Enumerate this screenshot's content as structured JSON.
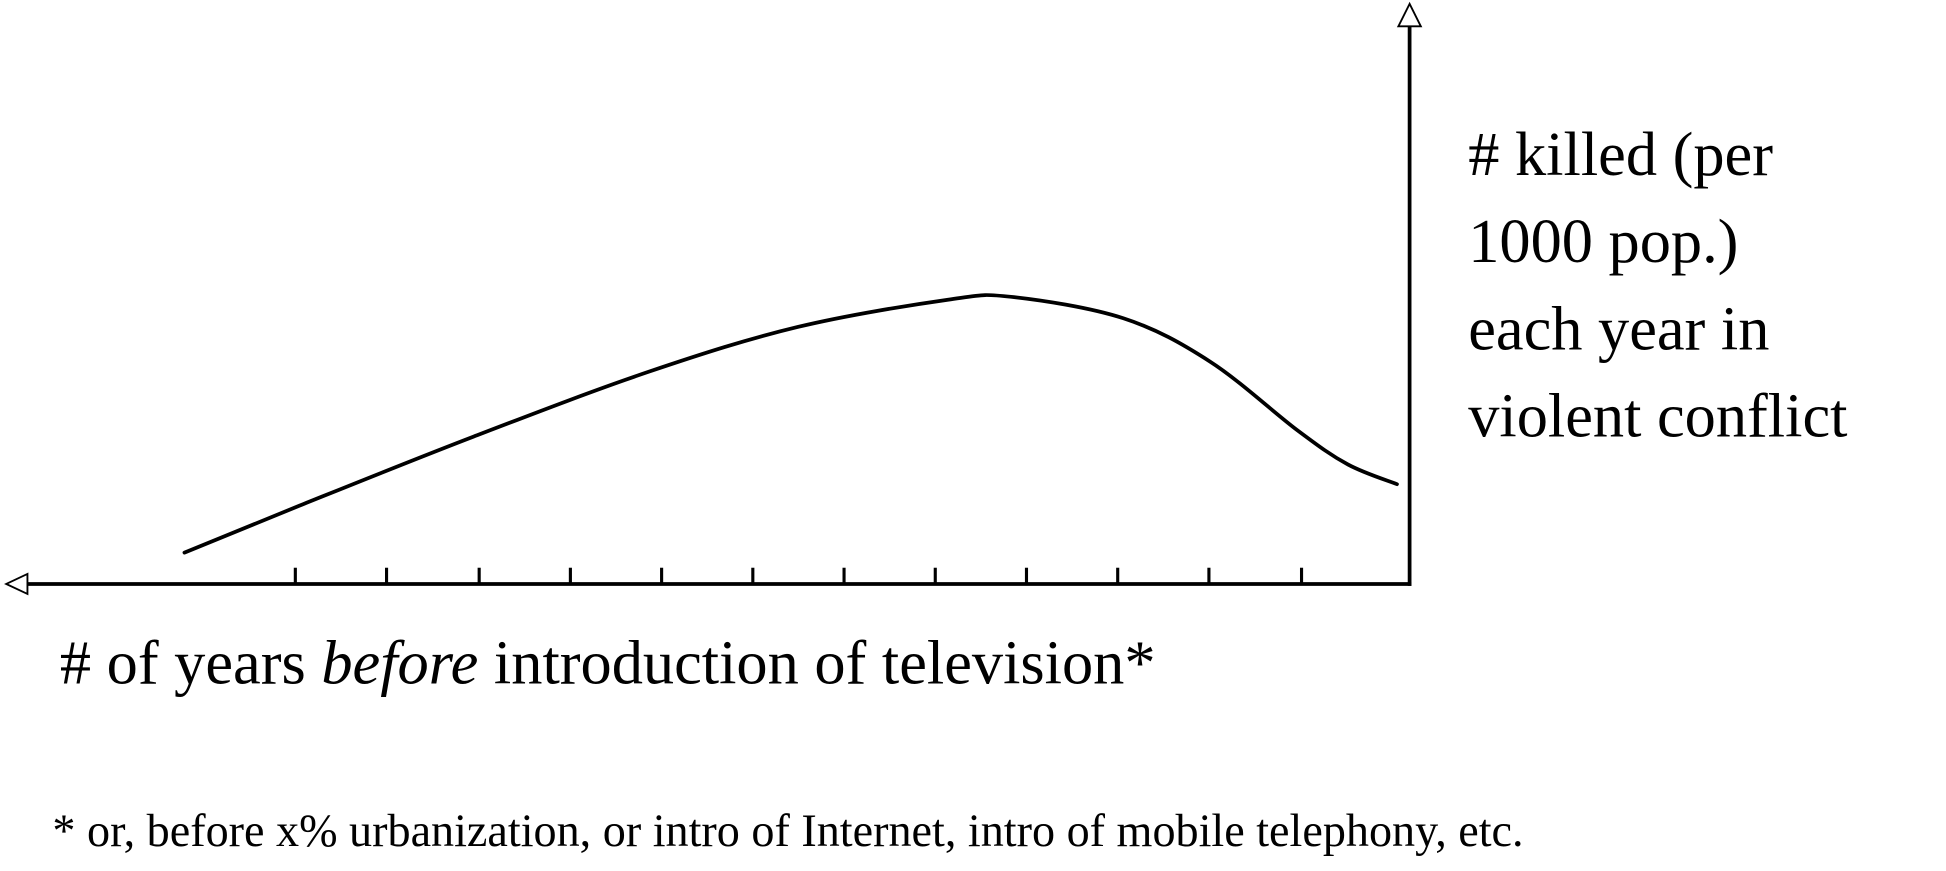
{
  "chart_data": {
    "type": "line",
    "x_label": [
      "# of years ",
      "before",
      " introduction of television*"
    ],
    "y_label": [
      "# killed (per",
      "1000 pop.)",
      "each year in",
      "violent conflict"
    ],
    "footnote": "* or, before x% urbanization, or intro of Internet, intro of mobile telephony, etc.",
    "x": [
      87.3,
      79.1,
      66.7,
      54.2,
      43.6,
      32.9,
      28.4,
      20.4,
      14.2,
      8.0,
      4.4,
      0.9
    ],
    "values": [
      5.4,
      13.5,
      25.4,
      36.6,
      44.3,
      49.0,
      49.5,
      45.8,
      38.3,
      26.5,
      20.6,
      17.2
    ],
    "xlim": [
      0,
      100
    ],
    "ylim": [
      0,
      100
    ],
    "xticks": [
      7.7,
      14.3,
      20.8,
      27.3,
      33.8,
      40.3,
      46.8,
      53.3,
      59.8,
      66.3,
      72.9,
      79.4
    ],
    "x_reversed": true,
    "color": "#000000"
  }
}
